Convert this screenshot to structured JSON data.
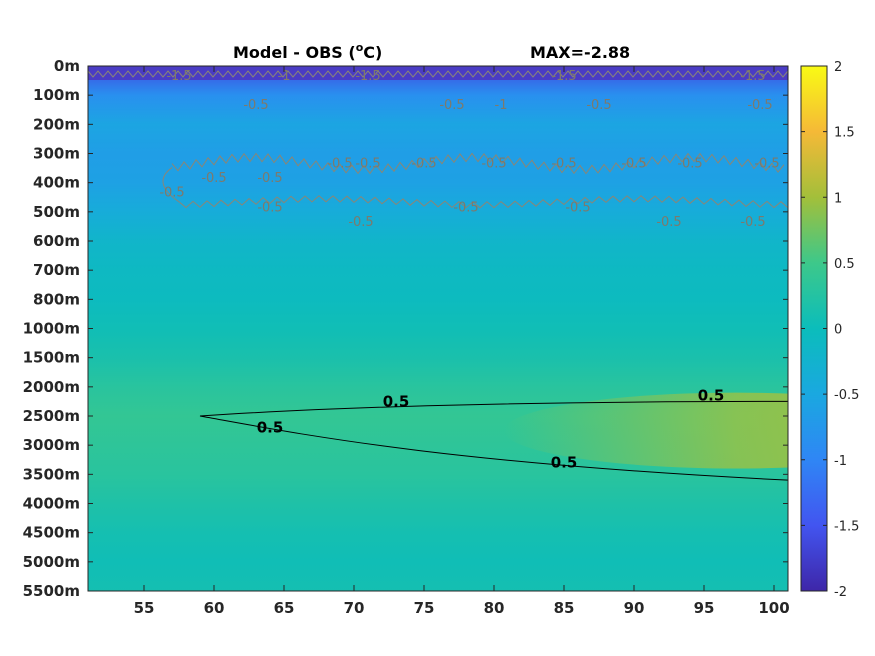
{
  "chart_data": {
    "type": "heatmap",
    "title": "Model - OBS (",
    "title_super": "o",
    "title_unit": "C)",
    "max_label": "MAX=-2.88",
    "xlim": [
      51,
      101
    ],
    "x_ticks": [
      55,
      60,
      65,
      70,
      75,
      80,
      85,
      90,
      95,
      100
    ],
    "y_ticks": [
      "0m",
      "100m",
      "200m",
      "300m",
      "400m",
      "500m",
      "600m",
      "700m",
      "800m",
      "1000m",
      "1500m",
      "2000m",
      "2500m",
      "3000m",
      "3500m",
      "4000m",
      "4500m",
      "5000m",
      "5500m"
    ],
    "colorbar": {
      "clim": [
        -2,
        2
      ],
      "ticks": [
        "2",
        "1.5",
        "1",
        "0.5",
        "0",
        "-0.5",
        "-1",
        "-1.5",
        "-2"
      ]
    },
    "depth_profile": [
      {
        "depth": "0m",
        "value": -1.6
      },
      {
        "depth": "100m",
        "value": -0.85
      },
      {
        "depth": "200m",
        "value": -0.55
      },
      {
        "depth": "300m",
        "value": -0.65
      },
      {
        "depth": "400m",
        "value": -0.6
      },
      {
        "depth": "500m",
        "value": -0.4
      },
      {
        "depth": "600m",
        "value": -0.2
      },
      {
        "depth": "700m",
        "value": -0.1
      },
      {
        "depth": "800m",
        "value": -0.05
      },
      {
        "depth": "1000m",
        "value": 0.05
      },
      {
        "depth": "1500m",
        "value": 0.15
      },
      {
        "depth": "2000m",
        "value": 0.3
      },
      {
        "depth": "2500m",
        "value": 0.4
      },
      {
        "depth": "3000m",
        "value": 0.35
      },
      {
        "depth": "3500m",
        "value": 0.3
      },
      {
        "depth": "4000m",
        "value": 0.2
      },
      {
        "depth": "4500m",
        "value": 0.1
      },
      {
        "depth": "5000m",
        "value": 0.05
      },
      {
        "depth": "5500m",
        "value": 0.1
      }
    ],
    "warm_core": {
      "value": 0.9,
      "x_range": [
        85,
        101
      ],
      "depth": "2750m"
    },
    "contour_labels_black": [
      {
        "text": "0.5",
        "x": 73,
        "depth": "2250m"
      },
      {
        "text": "0.5",
        "x": 95.5,
        "depth": "2150m"
      },
      {
        "text": "0.5",
        "x": 64,
        "depth": "2700m"
      },
      {
        "text": "0.5",
        "x": 85,
        "depth": "3300m"
      }
    ],
    "contour_labels_gray": [
      {
        "text": "-1.5",
        "x": 57.5,
        "depth": "0m"
      },
      {
        "text": "-1",
        "x": 65,
        "depth": "0m"
      },
      {
        "text": "-1.5",
        "x": 71,
        "depth": "0m"
      },
      {
        "text": "-0.5",
        "x": 63,
        "depth": "100m"
      },
      {
        "text": "-0.5",
        "x": 77,
        "depth": "100m"
      },
      {
        "text": "-1",
        "x": 80.5,
        "depth": "100m"
      },
      {
        "text": "-1.5",
        "x": 85,
        "depth": "0m"
      },
      {
        "text": "-0.5",
        "x": 87.5,
        "depth": "100m"
      },
      {
        "text": "-1.5",
        "x": 98.5,
        "depth": "0m"
      },
      {
        "text": "-0.5",
        "x": 99,
        "depth": "100m"
      },
      {
        "text": "-0.5",
        "x": 69,
        "depth": "300m"
      },
      {
        "text": "-0.5",
        "x": 71,
        "depth": "300m"
      },
      {
        "text": "-0.5",
        "x": 60,
        "depth": "350m"
      },
      {
        "text": "-0.5",
        "x": 64,
        "depth": "350m"
      },
      {
        "text": "-0.5",
        "x": 75,
        "depth": "300m"
      },
      {
        "text": "-0.5",
        "x": 80,
        "depth": "300m"
      },
      {
        "text": "-0.5",
        "x": 85,
        "depth": "300m"
      },
      {
        "text": "-0.5",
        "x": 90,
        "depth": "300m"
      },
      {
        "text": "-0.5",
        "x": 94,
        "depth": "300m"
      },
      {
        "text": "-0.5",
        "x": 99.5,
        "depth": "300m"
      },
      {
        "text": "-0.5",
        "x": 57,
        "depth": "400m"
      },
      {
        "text": "-0.5",
        "x": 64,
        "depth": "450m"
      },
      {
        "text": "-0.5",
        "x": 70.5,
        "depth": "500m"
      },
      {
        "text": "-0.5",
        "x": 78,
        "depth": "450m"
      },
      {
        "text": "-0.5",
        "x": 86,
        "depth": "450m"
      },
      {
        "text": "-0.5",
        "x": 92.5,
        "depth": "500m"
      },
      {
        "text": "-0.5",
        "x": 98.5,
        "depth": "500m"
      }
    ],
    "grid": false,
    "legend": "none"
  }
}
